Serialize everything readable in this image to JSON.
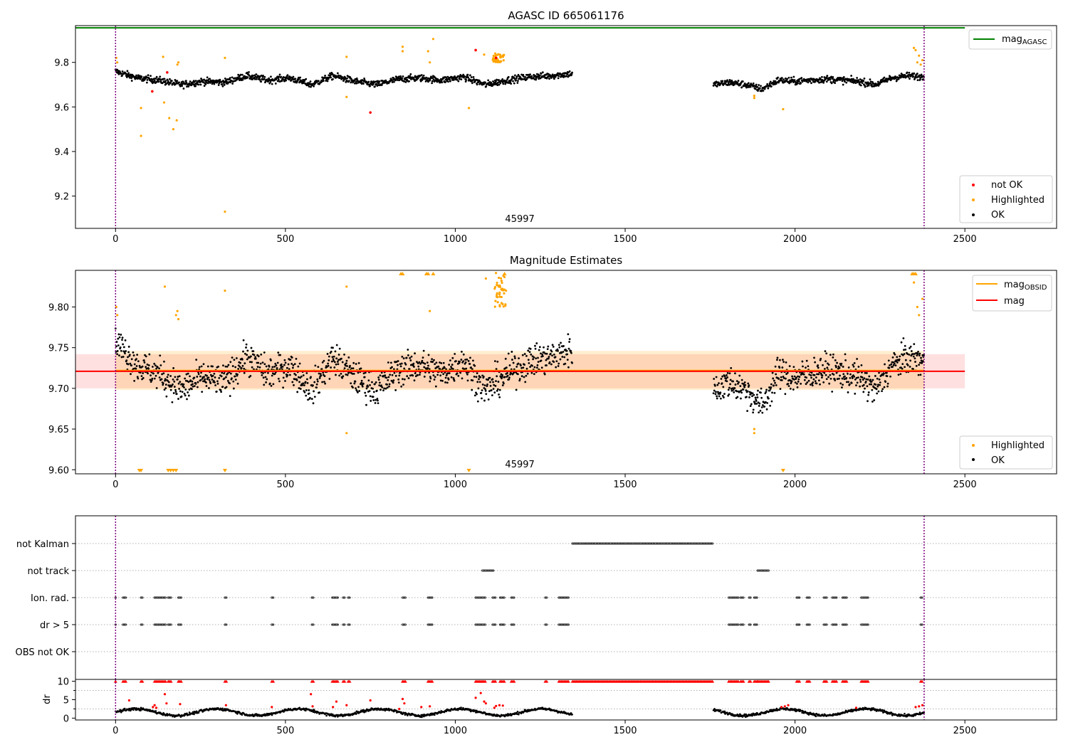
{
  "chart_data": [
    {
      "type": "scatter",
      "title": "AGASC ID 665061176",
      "xlim": [
        -118,
        2770
      ],
      "ylim": [
        9.055,
        9.965
      ],
      "xticks": [
        0,
        500,
        1000,
        1500,
        2000,
        2500
      ],
      "yticks": [
        9.2,
        9.4,
        9.6,
        9.8
      ],
      "ytick_labels": [
        "9.2",
        "9.4",
        "9.6",
        "9.8"
      ],
      "annotation": "45997",
      "annotation_x": 1190,
      "vlines": [
        0,
        2380
      ],
      "vline_color": "#800080",
      "reference_line": {
        "name": "mag",
        "subscript": "AGASC",
        "value": 9.955,
        "color": "#008000",
        "x_range": [
          -118,
          2500
        ]
      },
      "legend_points": [
        {
          "name": "not OK",
          "color": "#ff0000"
        },
        {
          "name": "Highlighted",
          "color": "#ffa500"
        },
        {
          "name": "OK",
          "color": "#000000"
        }
      ],
      "ok_segments": [
        {
          "x_start": 0,
          "x_end": 1345,
          "centers": [
            9.76,
            9.73,
            9.72,
            9.7,
            9.715,
            9.71,
            9.74,
            9.72,
            9.73,
            9.7,
            9.74,
            9.715,
            9.7,
            9.725,
            9.73,
            9.72,
            9.735,
            9.7,
            9.72,
            9.735,
            9.74,
            9.75
          ]
        },
        {
          "x_start": 1760,
          "x_end": 2380,
          "centers": [
            9.7,
            9.71,
            9.7,
            9.68,
            9.72,
            9.715,
            9.72,
            9.725,
            9.72,
            9.715,
            9.7,
            9.73,
            9.74,
            9.735
          ]
        }
      ],
      "not_ok_points": [
        [
          108,
          9.67
        ],
        [
          152,
          9.755
        ],
        [
          750,
          9.575
        ],
        [
          1060,
          9.855
        ],
        [
          1120,
          9.82
        ]
      ],
      "highlighted_points": [
        [
          2,
          9.82
        ],
        [
          5,
          9.8
        ],
        [
          75,
          9.595
        ],
        [
          75,
          9.47
        ],
        [
          140,
          9.825
        ],
        [
          143,
          9.62
        ],
        [
          158,
          9.55
        ],
        [
          170,
          9.5
        ],
        [
          180,
          9.54
        ],
        [
          182,
          9.79
        ],
        [
          185,
          9.8
        ],
        [
          322,
          9.82
        ],
        [
          322,
          9.13
        ],
        [
          680,
          9.645
        ],
        [
          680,
          9.825
        ],
        [
          845,
          9.87
        ],
        [
          845,
          9.85
        ],
        [
          920,
          9.85
        ],
        [
          925,
          9.8
        ],
        [
          935,
          9.905
        ],
        [
          1040,
          9.595
        ],
        [
          1085,
          9.835
        ],
        [
          1965,
          9.59
        ],
        [
          1880,
          9.65
        ],
        [
          1880,
          9.64
        ],
        [
          2350,
          9.865
        ],
        [
          2355,
          9.855
        ],
        [
          2360,
          9.8
        ],
        [
          2365,
          9.83
        ],
        [
          2370,
          9.79
        ],
        [
          2375,
          9.81
        ]
      ]
    },
    {
      "type": "scatter",
      "title": "Magnitude Estimates",
      "xlim": [
        -118,
        2770
      ],
      "ylim": [
        9.595,
        9.845
      ],
      "xticks": [
        0,
        500,
        1000,
        1500,
        2000,
        2500
      ],
      "yticks": [
        9.6,
        9.65,
        9.7,
        9.75,
        9.8
      ],
      "ytick_labels": [
        "9.60",
        "9.65",
        "9.70",
        "9.75",
        "9.80"
      ],
      "annotation": "45997",
      "annotation_x": 1190,
      "vlines": [
        0,
        2380
      ],
      "vline_color": "#800080",
      "mag_line": {
        "name": "mag",
        "value": 9.721,
        "color": "#ff0000",
        "band_low": 9.7,
        "band_high": 9.742,
        "x_range": [
          -118,
          2500
        ]
      },
      "obsid_line": {
        "name": "mag",
        "subscript": "OBSID",
        "value": 9.722,
        "color": "#ffa500",
        "band_low": 9.698,
        "band_high": 9.746,
        "x_range": [
          0,
          2380
        ]
      },
      "legend_points": [
        {
          "name": "Highlighted",
          "color": "#ffa500"
        },
        {
          "name": "OK",
          "color": "#000000"
        }
      ],
      "highlighted_points": [
        [
          2,
          9.8
        ],
        [
          5,
          9.79
        ],
        [
          145,
          9.825
        ],
        [
          178,
          9.79
        ],
        [
          182,
          9.795
        ],
        [
          185,
          9.785
        ],
        [
          322,
          9.82
        ],
        [
          680,
          9.825
        ],
        [
          680,
          9.645
        ],
        [
          925,
          9.795
        ],
        [
          1090,
          9.835
        ],
        [
          1880,
          9.65
        ],
        [
          1880,
          9.645
        ],
        [
          2350,
          9.83
        ],
        [
          2360,
          9.8
        ],
        [
          2365,
          9.79
        ],
        [
          2375,
          9.81
        ]
      ],
      "obsid_burst": {
        "x_start": 1115,
        "x_end": 1150,
        "y_low": 9.8,
        "y_high": 9.845
      },
      "clipped_low": [
        70,
        75,
        155,
        162,
        170,
        178,
        322,
        1040,
        1965
      ],
      "clipped_high": [
        840,
        845,
        915,
        920,
        935,
        1145,
        2345,
        2350,
        2355
      ]
    },
    {
      "type": "scatter",
      "title": "",
      "xlim": [
        -118,
        2770
      ],
      "categories": [
        "not Kalman",
        "not track",
        "Ion. rad.",
        "dr > 5",
        "OBS not OK"
      ],
      "vlines": [
        0,
        2380
      ],
      "vline_color": "#800080",
      "flag_spans": {
        "not Kalman": [
          [
            1345,
            1760
          ]
        ],
        "not track": [
          [
            1080,
            1115
          ],
          [
            1890,
            1925
          ]
        ],
        "Ion. rad.": [
          [
            0,
            3
          ],
          [
            22,
            30
          ],
          [
            75,
            80
          ],
          [
            115,
            150
          ],
          [
            155,
            165
          ],
          [
            185,
            195
          ],
          [
            322,
            326
          ],
          [
            460,
            464
          ],
          [
            578,
            584
          ],
          [
            638,
            655
          ],
          [
            670,
            676
          ],
          [
            685,
            690
          ],
          [
            845,
            855
          ],
          [
            920,
            935
          ],
          [
            1060,
            1090
          ],
          [
            1110,
            1120
          ],
          [
            1132,
            1145
          ],
          [
            1165,
            1175
          ],
          [
            1265,
            1270
          ],
          [
            1305,
            1335
          ],
          [
            1805,
            1835
          ],
          [
            1840,
            1848
          ],
          [
            1865,
            1870
          ],
          [
            1880,
            1890
          ],
          [
            2005,
            2015
          ],
          [
            2035,
            2045
          ],
          [
            2085,
            2095
          ],
          [
            2110,
            2125
          ],
          [
            2140,
            2155
          ],
          [
            2195,
            2215
          ],
          [
            2370,
            2375
          ]
        ],
        "dr > 5": [
          [
            0,
            3
          ],
          [
            22,
            30
          ],
          [
            75,
            80
          ],
          [
            115,
            150
          ],
          [
            155,
            165
          ],
          [
            185,
            195
          ],
          [
            322,
            326
          ],
          [
            460,
            464
          ],
          [
            578,
            584
          ],
          [
            638,
            655
          ],
          [
            670,
            676
          ],
          [
            685,
            690
          ],
          [
            845,
            855
          ],
          [
            920,
            935
          ],
          [
            1060,
            1090
          ],
          [
            1110,
            1120
          ],
          [
            1132,
            1145
          ],
          [
            1165,
            1175
          ],
          [
            1265,
            1270
          ],
          [
            1305,
            1335
          ],
          [
            1805,
            1835
          ],
          [
            1840,
            1848
          ],
          [
            1865,
            1870
          ],
          [
            1880,
            1890
          ],
          [
            2005,
            2015
          ],
          [
            2035,
            2045
          ],
          [
            2085,
            2095
          ],
          [
            2110,
            2125
          ],
          [
            2140,
            2155
          ],
          [
            2195,
            2215
          ],
          [
            2370,
            2375
          ]
        ],
        "OBS not OK": []
      }
    },
    {
      "type": "scatter",
      "title": "",
      "ylabel": "dr",
      "xlim": [
        -118,
        2770
      ],
      "ylim": [
        -0.5,
        10.5
      ],
      "xticks": [
        0,
        500,
        1000,
        1500,
        2000,
        2500
      ],
      "yticks": [
        0,
        5,
        10
      ],
      "ytick_labels": [
        "0",
        "5",
        "10"
      ],
      "minor_yticks": [
        2.5,
        7.5
      ],
      "vlines": [
        0,
        2380
      ],
      "vline_color": "#800080",
      "dr_ok_ranges": [
        [
          0,
          1345
        ],
        [
          1760,
          2380
        ]
      ],
      "dr_clipped_spans": [
        [
          0,
          3
        ],
        [
          22,
          30
        ],
        [
          75,
          80
        ],
        [
          115,
          150
        ],
        [
          155,
          165
        ],
        [
          185,
          195
        ],
        [
          322,
          326
        ],
        [
          460,
          464
        ],
        [
          578,
          584
        ],
        [
          638,
          655
        ],
        [
          670,
          676
        ],
        [
          685,
          690
        ],
        [
          845,
          855
        ],
        [
          920,
          935
        ],
        [
          1060,
          1090
        ],
        [
          1110,
          1120
        ],
        [
          1132,
          1145
        ],
        [
          1165,
          1175
        ],
        [
          1265,
          1270
        ],
        [
          1305,
          1335
        ],
        [
          1345,
          1760
        ],
        [
          1805,
          1835
        ],
        [
          1840,
          1848
        ],
        [
          1865,
          1870
        ],
        [
          1880,
          1890
        ],
        [
          1890,
          1925
        ],
        [
          2005,
          2015
        ],
        [
          2035,
          2045
        ],
        [
          2085,
          2095
        ],
        [
          2110,
          2125
        ],
        [
          2140,
          2155
        ],
        [
          2195,
          2215
        ],
        [
          2370,
          2375
        ]
      ],
      "dr_red_points": [
        [
          40,
          4.8
        ],
        [
          110,
          3.0
        ],
        [
          115,
          3.5
        ],
        [
          120,
          2.8
        ],
        [
          145,
          6.5
        ],
        [
          150,
          4.0
        ],
        [
          190,
          3.8
        ],
        [
          325,
          3.5
        ],
        [
          460,
          3.0
        ],
        [
          575,
          6.5
        ],
        [
          580,
          3.2
        ],
        [
          640,
          3.0
        ],
        [
          650,
          4.5
        ],
        [
          680,
          3.5
        ],
        [
          750,
          4.8
        ],
        [
          835,
          2.5
        ],
        [
          845,
          5.2
        ],
        [
          850,
          4.0
        ],
        [
          900,
          3.0
        ],
        [
          925,
          3.2
        ],
        [
          1060,
          5.5
        ],
        [
          1075,
          6.8
        ],
        [
          1085,
          4.5
        ],
        [
          1090,
          4.0
        ],
        [
          1115,
          2.8
        ],
        [
          1120,
          3.3
        ],
        [
          1130,
          3.5
        ],
        [
          1140,
          3.4
        ],
        [
          1960,
          3.0
        ],
        [
          1970,
          3.2
        ],
        [
          1980,
          3.5
        ],
        [
          2180,
          2.8
        ],
        [
          2355,
          3.0
        ],
        [
          2365,
          3.2
        ],
        [
          2375,
          3.5
        ]
      ]
    }
  ]
}
